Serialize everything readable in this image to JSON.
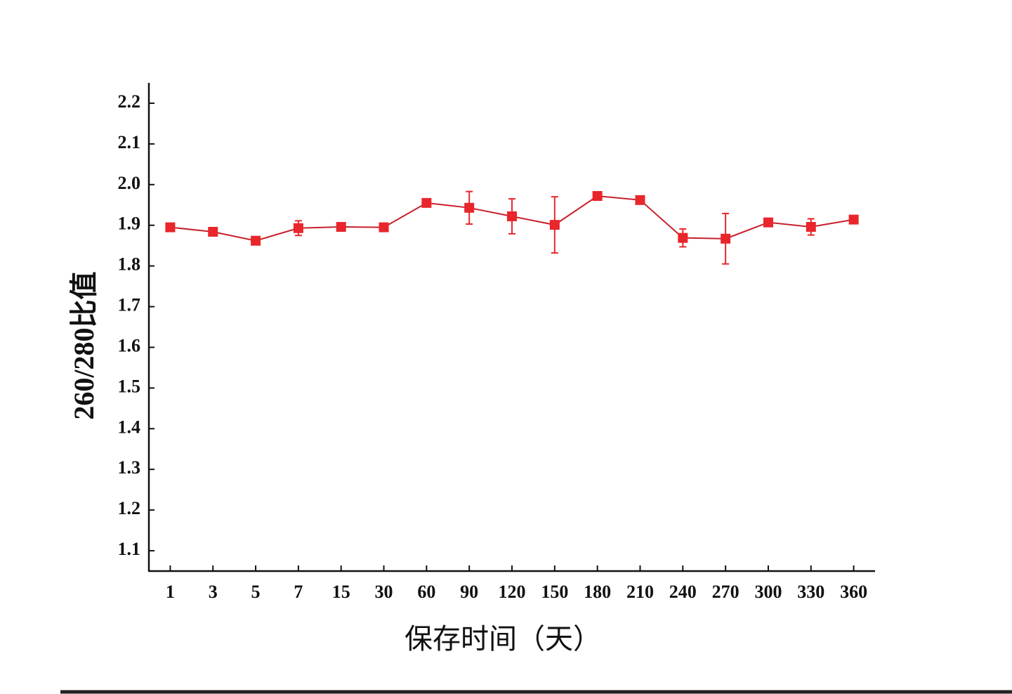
{
  "chart_data": {
    "type": "line",
    "x_label": "保存时间（天）",
    "y_label": "260/280比值",
    "categories": [
      "1",
      "3",
      "5",
      "7",
      "15",
      "30",
      "60",
      "90",
      "120",
      "150",
      "180",
      "210",
      "240",
      "270",
      "300",
      "330",
      "360"
    ],
    "series": [
      {
        "color": "#e8262b",
        "values": [
          1.895,
          1.884,
          1.862,
          1.893,
          1.896,
          1.895,
          1.955,
          1.943,
          1.922,
          1.901,
          1.972,
          1.962,
          1.869,
          1.867,
          1.907,
          1.896,
          1.914
        ],
        "errors": [
          0.005,
          0.005,
          0.005,
          0.018,
          0.005,
          0.005,
          0.005,
          0.04,
          0.043,
          0.069,
          0.005,
          0.005,
          0.022,
          0.062,
          0.01,
          0.02,
          0.005
        ]
      }
    ],
    "ylim": [
      1.05,
      2.25
    ],
    "yticks": [
      1.1,
      1.2,
      1.3,
      1.4,
      1.5,
      1.6,
      1.7,
      1.8,
      1.9,
      {
        "value": 2,
        "label": "2.0"
      },
      2.1,
      2.2
    ]
  }
}
